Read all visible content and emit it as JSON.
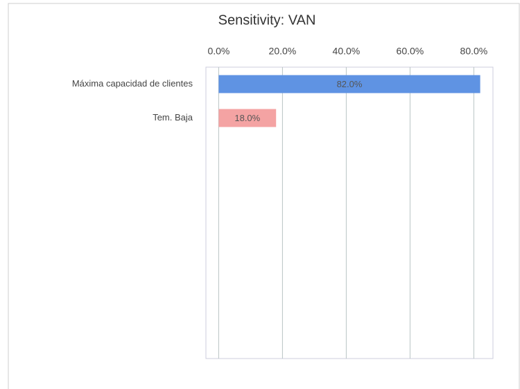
{
  "chart_data": {
    "type": "barh",
    "title": "Sensitivity: VAN",
    "categories": [
      "Máxima capacidad de clientes",
      "Tem. Baja"
    ],
    "values": [
      82,
      18
    ],
    "value_labels": [
      "82.0%",
      "18.0%"
    ],
    "colors": [
      "#5f93e3",
      "#f4a3a3"
    ],
    "xlim": [
      -4,
      86
    ],
    "xticks": [
      {
        "value": 0,
        "label": "0.0%"
      },
      {
        "value": 20,
        "label": "20.0%"
      },
      {
        "value": 40,
        "label": "40.0%"
      },
      {
        "value": 60,
        "label": "60.0%"
      },
      {
        "value": 80,
        "label": "80.0%"
      }
    ],
    "grid": true
  }
}
